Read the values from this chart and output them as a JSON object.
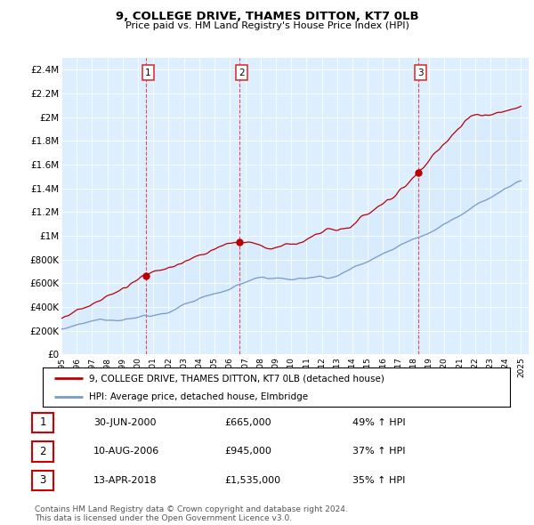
{
  "title": "9, COLLEGE DRIVE, THAMES DITTON, KT7 0LB",
  "subtitle": "Price paid vs. HM Land Registry's House Price Index (HPI)",
  "ylabel_ticks": [
    "£0",
    "£200K",
    "£400K",
    "£600K",
    "£800K",
    "£1M",
    "£1.2M",
    "£1.4M",
    "£1.6M",
    "£1.8M",
    "£2M",
    "£2.2M",
    "£2.4M"
  ],
  "ytick_values": [
    0,
    200000,
    400000,
    600000,
    800000,
    1000000,
    1200000,
    1400000,
    1600000,
    1800000,
    2000000,
    2200000,
    2400000
  ],
  "ylim": [
    0,
    2500000
  ],
  "red_line_color": "#bb0000",
  "blue_line_color": "#7799cc",
  "vline_color": "#dd3333",
  "plot_bg_color": "#ddeeff",
  "grid_color": "#ffffff",
  "legend_entries": [
    "9, COLLEGE DRIVE, THAMES DITTON, KT7 0LB (detached house)",
    "HPI: Average price, detached house, Elmbridge"
  ],
  "transactions": [
    {
      "num": "1",
      "date": "30-JUN-2000",
      "price": "£665,000",
      "change": "49% ↑ HPI",
      "year": 2000.5
    },
    {
      "num": "2",
      "date": "10-AUG-2006",
      "price": "£945,000",
      "change": "37% ↑ HPI",
      "year": 2006.62
    },
    {
      "num": "3",
      "date": "13-APR-2018",
      "price": "£1,535,000",
      "change": "35% ↑ HPI",
      "year": 2018.28
    }
  ],
  "footer1": "Contains HM Land Registry data © Crown copyright and database right 2024.",
  "footer2": "This data is licensed under the Open Government Licence v3.0.",
  "red_dot_values": [
    665000,
    945000,
    1535000
  ],
  "red_dot_years": [
    2000.5,
    2006.62,
    2018.28
  ]
}
